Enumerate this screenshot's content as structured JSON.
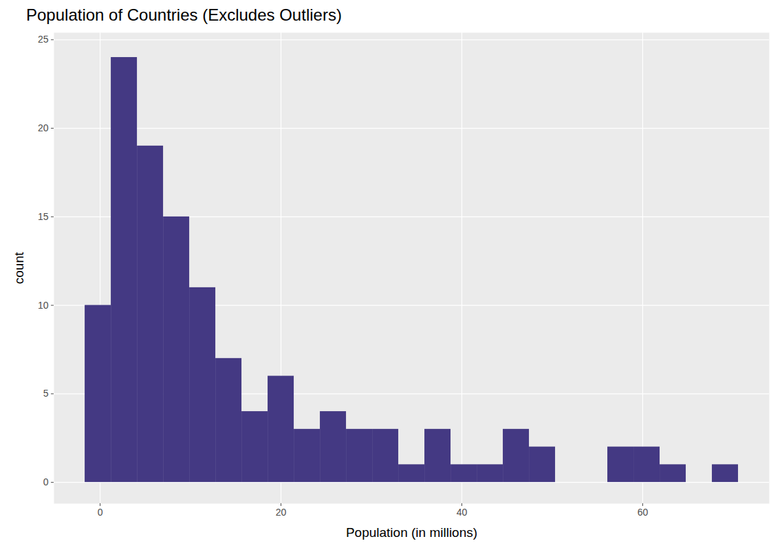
{
  "chart_data": {
    "type": "histogram",
    "title": "Population of Countries (Excludes Outliers)",
    "x_label": "Population (in millions)",
    "y_label": "count",
    "bins": [
      -1.67,
      1.22,
      4.11,
      7.0,
      9.89,
      12.78,
      15.67,
      18.56,
      21.45,
      24.34,
      27.23,
      30.12,
      33.01,
      35.9,
      38.79,
      41.68,
      44.57,
      47.46,
      50.35,
      53.24,
      56.13,
      59.02,
      61.91,
      64.8,
      67.69,
      70.58
    ],
    "values": [
      10,
      24,
      19,
      15,
      11,
      7,
      4,
      6,
      3,
      4,
      3,
      3,
      1,
      3,
      1,
      1,
      3,
      2,
      0,
      0,
      2,
      2,
      1,
      0,
      1
    ],
    "color": "#443983",
    "xlim": [
      -5.1,
      74.0
    ],
    "xticks": [
      0,
      20,
      40,
      60
    ],
    "ylim": [
      -1.2,
      25.4
    ],
    "yticks": [
      0,
      5,
      10,
      15,
      20,
      25
    ],
    "grid": true
  }
}
